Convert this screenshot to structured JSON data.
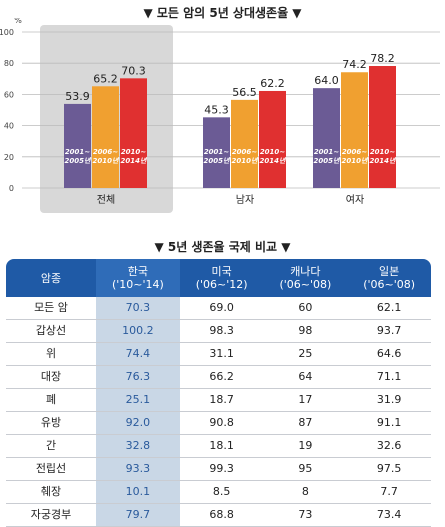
{
  "chart_title": "▼ 모든 암의 5년 상대생존율 ▼",
  "table_title": "▼ 5년 생존율 국제 비교 ▼",
  "chart_data": {
    "type": "bar",
    "categories": [
      "전체",
      "남자",
      "여자"
    ],
    "series": [
      {
        "name": "2001~2005년",
        "values": [
          53.9,
          45.3,
          64.0
        ],
        "color": "#6b5b95"
      },
      {
        "name": "2006~2010년",
        "values": [
          65.2,
          56.5,
          74.2
        ],
        "color": "#f0a030"
      },
      {
        "name": "2010~2014년",
        "values": [
          70.3,
          62.2,
          78.2
        ],
        "color": "#e03030"
      }
    ],
    "value_labels": [
      [
        "53.9",
        "45.3",
        "64.0"
      ],
      [
        "65.2",
        "56.5",
        "74.2"
      ],
      [
        "70.3",
        "62.2",
        "78.2"
      ]
    ],
    "yunit": "%",
    "yticks": [
      "0",
      "20",
      "40",
      "60",
      "80",
      "100"
    ],
    "ylim": [
      0,
      100
    ],
    "highlight_category": "전체"
  },
  "table": {
    "headers": [
      {
        "l1": "암종",
        "l2": ""
      },
      {
        "l1": "한국",
        "l2": "('10~'14)"
      },
      {
        "l1": "미국",
        "l2": "('06~'12)"
      },
      {
        "l1": "캐나다",
        "l2": "('06~'08)"
      },
      {
        "l1": "일본",
        "l2": "('06~'08)"
      }
    ],
    "rows": [
      [
        "모든 암",
        "70.3",
        "69.0",
        "60",
        "62.1"
      ],
      [
        "갑상선",
        "100.2",
        "98.3",
        "98",
        "93.7"
      ],
      [
        "위",
        "74.4",
        "31.1",
        "25",
        "64.6"
      ],
      [
        "대장",
        "76.3",
        "66.2",
        "64",
        "71.1"
      ],
      [
        "폐",
        "25.1",
        "18.7",
        "17",
        "31.9"
      ],
      [
        "유방",
        "92.0",
        "90.8",
        "87",
        "91.1"
      ],
      [
        "간",
        "32.8",
        "18.1",
        "19",
        "32.6"
      ],
      [
        "전립선",
        "93.3",
        "99.3",
        "95",
        "97.5"
      ],
      [
        "췌장",
        "10.1",
        "8.5",
        "8",
        "7.7"
      ],
      [
        "자궁경부",
        "79.7",
        "68.8",
        "73",
        "73.4"
      ]
    ]
  }
}
